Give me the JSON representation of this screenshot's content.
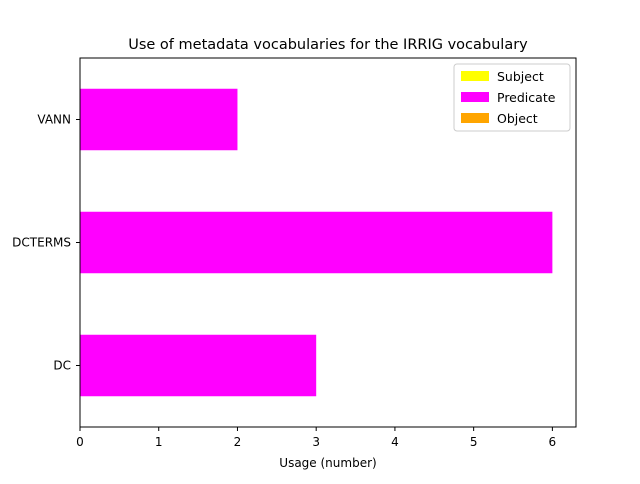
{
  "chart_data": {
    "type": "bar",
    "orientation": "horizontal",
    "stacked": true,
    "title": "Use of metadata vocabularies for the IRRIG vocabulary",
    "xlabel": "Usage (number)",
    "ylabel": "",
    "categories": [
      "DC",
      "DCTERMS",
      "VANN"
    ],
    "series": [
      {
        "name": "Subject",
        "color": "#ffff00",
        "values": [
          0,
          0,
          0
        ]
      },
      {
        "name": "Predicate",
        "color": "#ff00ff",
        "values": [
          3,
          6,
          2
        ]
      },
      {
        "name": "Object",
        "color": "#ffa500",
        "values": [
          0,
          0,
          0
        ]
      }
    ],
    "xlim": [
      0,
      6.3
    ],
    "xticks": [
      0,
      1,
      2,
      3,
      4,
      5,
      6
    ],
    "grid": false,
    "legend_position": "top-right"
  }
}
